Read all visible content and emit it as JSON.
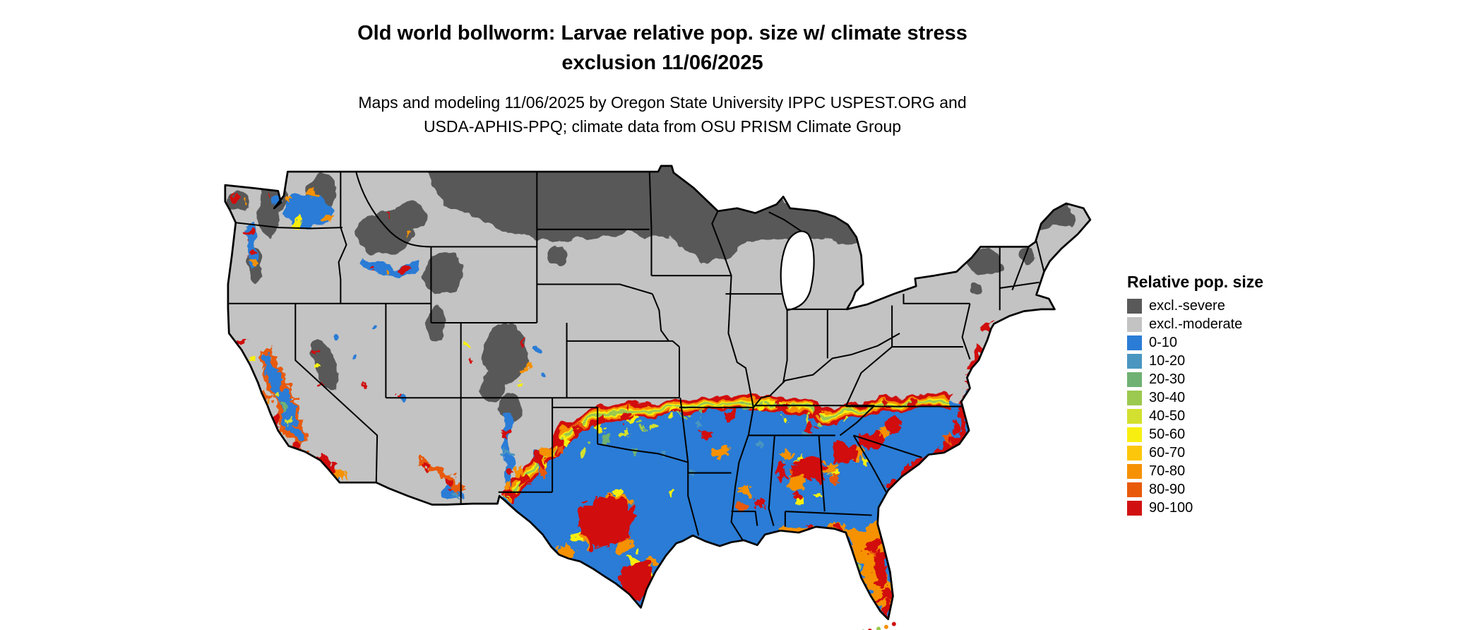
{
  "title": {
    "line1": "Old world bollworm: Larvae relative pop. size w/ climate stress",
    "line2": "exclusion 11/06/2025"
  },
  "subtitle": {
    "line1": "Maps and modeling 11/06/2025 by Oregon State University IPPC USPEST.ORG and",
    "line2": "USDA-APHIS-PPQ; climate data from OSU PRISM Climate Group"
  },
  "legend": {
    "title": "Relative pop. size",
    "entries": [
      {
        "label": "excl.-severe",
        "color": "#595959"
      },
      {
        "label": "excl.-moderate",
        "color": "#c3c3c3"
      },
      {
        "label": "0-10",
        "color": "#2b7cd6"
      },
      {
        "label": "10-20",
        "color": "#4a96c0"
      },
      {
        "label": "20-30",
        "color": "#6fb173"
      },
      {
        "label": "30-40",
        "color": "#9cc94f"
      },
      {
        "label": "40-50",
        "color": "#d3e02f"
      },
      {
        "label": "50-60",
        "color": "#f8ef11"
      },
      {
        "label": "60-70",
        "color": "#fcc70a"
      },
      {
        "label": "70-80",
        "color": "#f69105"
      },
      {
        "label": "80-90",
        "color": "#e85a09"
      },
      {
        "label": "90-100",
        "color": "#d11111"
      }
    ]
  }
}
